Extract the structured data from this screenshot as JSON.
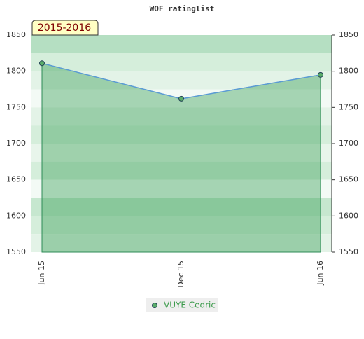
{
  "chart_data": {
    "type": "line",
    "title": "WOF ratinglist",
    "label": "2015-2016",
    "categories": [
      "Jun 15",
      "Dec 15",
      "Jun 16"
    ],
    "series": [
      {
        "name": "VUYE Cedric",
        "color": "#5b9bd5",
        "values": [
          1811,
          1762,
          1795
        ]
      }
    ],
    "ylim": [
      1550,
      1850
    ],
    "yticks": [
      1550,
      1600,
      1650,
      1700,
      1750,
      1800,
      1850
    ]
  }
}
